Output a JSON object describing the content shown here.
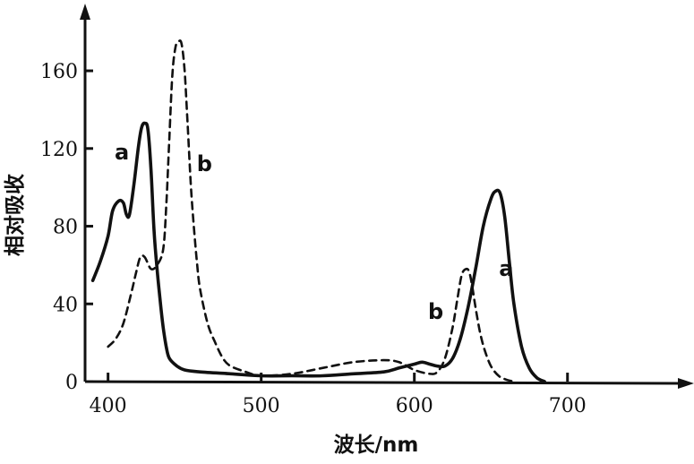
{
  "chart_data": {
    "type": "line",
    "xlabel": "波长/nm",
    "ylabel": "相对吸收",
    "xlim": [
      385,
      775
    ],
    "ylim": [
      0,
      190
    ],
    "xticks": [
      400,
      500,
      600,
      700
    ],
    "yticks": [
      0,
      40,
      80,
      120,
      160
    ],
    "series": [
      {
        "name": "a",
        "style": "solid",
        "label_at": [
          409,
          118
        ],
        "x": [
          390,
          395,
          400,
          403,
          407,
          410,
          412,
          414,
          417,
          420,
          422,
          424,
          426,
          428,
          430,
          432,
          434,
          436,
          438,
          440,
          445,
          450,
          460,
          480,
          500,
          520,
          540,
          560,
          580,
          590,
          600,
          605,
          610,
          615,
          620,
          625,
          630,
          635,
          640,
          645,
          650,
          653,
          656,
          659,
          662,
          665,
          670,
          675,
          680,
          685
        ],
        "y": [
          52,
          62,
          75,
          88,
          93,
          92,
          86,
          86,
          102,
          122,
          131,
          133,
          130,
          110,
          78,
          58,
          42,
          28,
          18,
          12,
          8,
          6,
          5,
          4,
          3,
          3,
          3,
          4,
          5,
          7,
          9,
          10,
          9,
          8,
          8,
          12,
          22,
          38,
          58,
          80,
          94,
          98,
          97,
          85,
          62,
          40,
          18,
          7,
          2,
          0
        ]
      },
      {
        "name": "b",
        "style": "dashed",
        "label_at": [
          463,
          112
        ],
        "x": [
          400,
          405,
          410,
          415,
          418,
          421,
          424,
          428,
          432,
          436,
          438,
          440,
          442,
          444,
          446,
          448,
          450,
          452,
          454,
          456,
          458,
          460,
          465,
          470,
          475,
          480,
          490,
          500,
          520,
          540,
          560,
          580,
          590,
          600,
          610,
          615,
          620,
          625,
          628,
          631,
          634,
          636,
          638,
          640,
          643,
          646,
          650,
          655,
          660,
          665
        ],
        "y": [
          18,
          22,
          30,
          45,
          55,
          64,
          64,
          58,
          60,
          68,
          90,
          125,
          158,
          172,
          175,
          174,
          160,
          132,
          102,
          80,
          62,
          48,
          30,
          20,
          12,
          8,
          5,
          3,
          4,
          7,
          10,
          11,
          10,
          6,
          4,
          5,
          12,
          28,
          42,
          55,
          58,
          56,
          48,
          38,
          25,
          16,
          8,
          3,
          1,
          0
        ]
      }
    ]
  }
}
